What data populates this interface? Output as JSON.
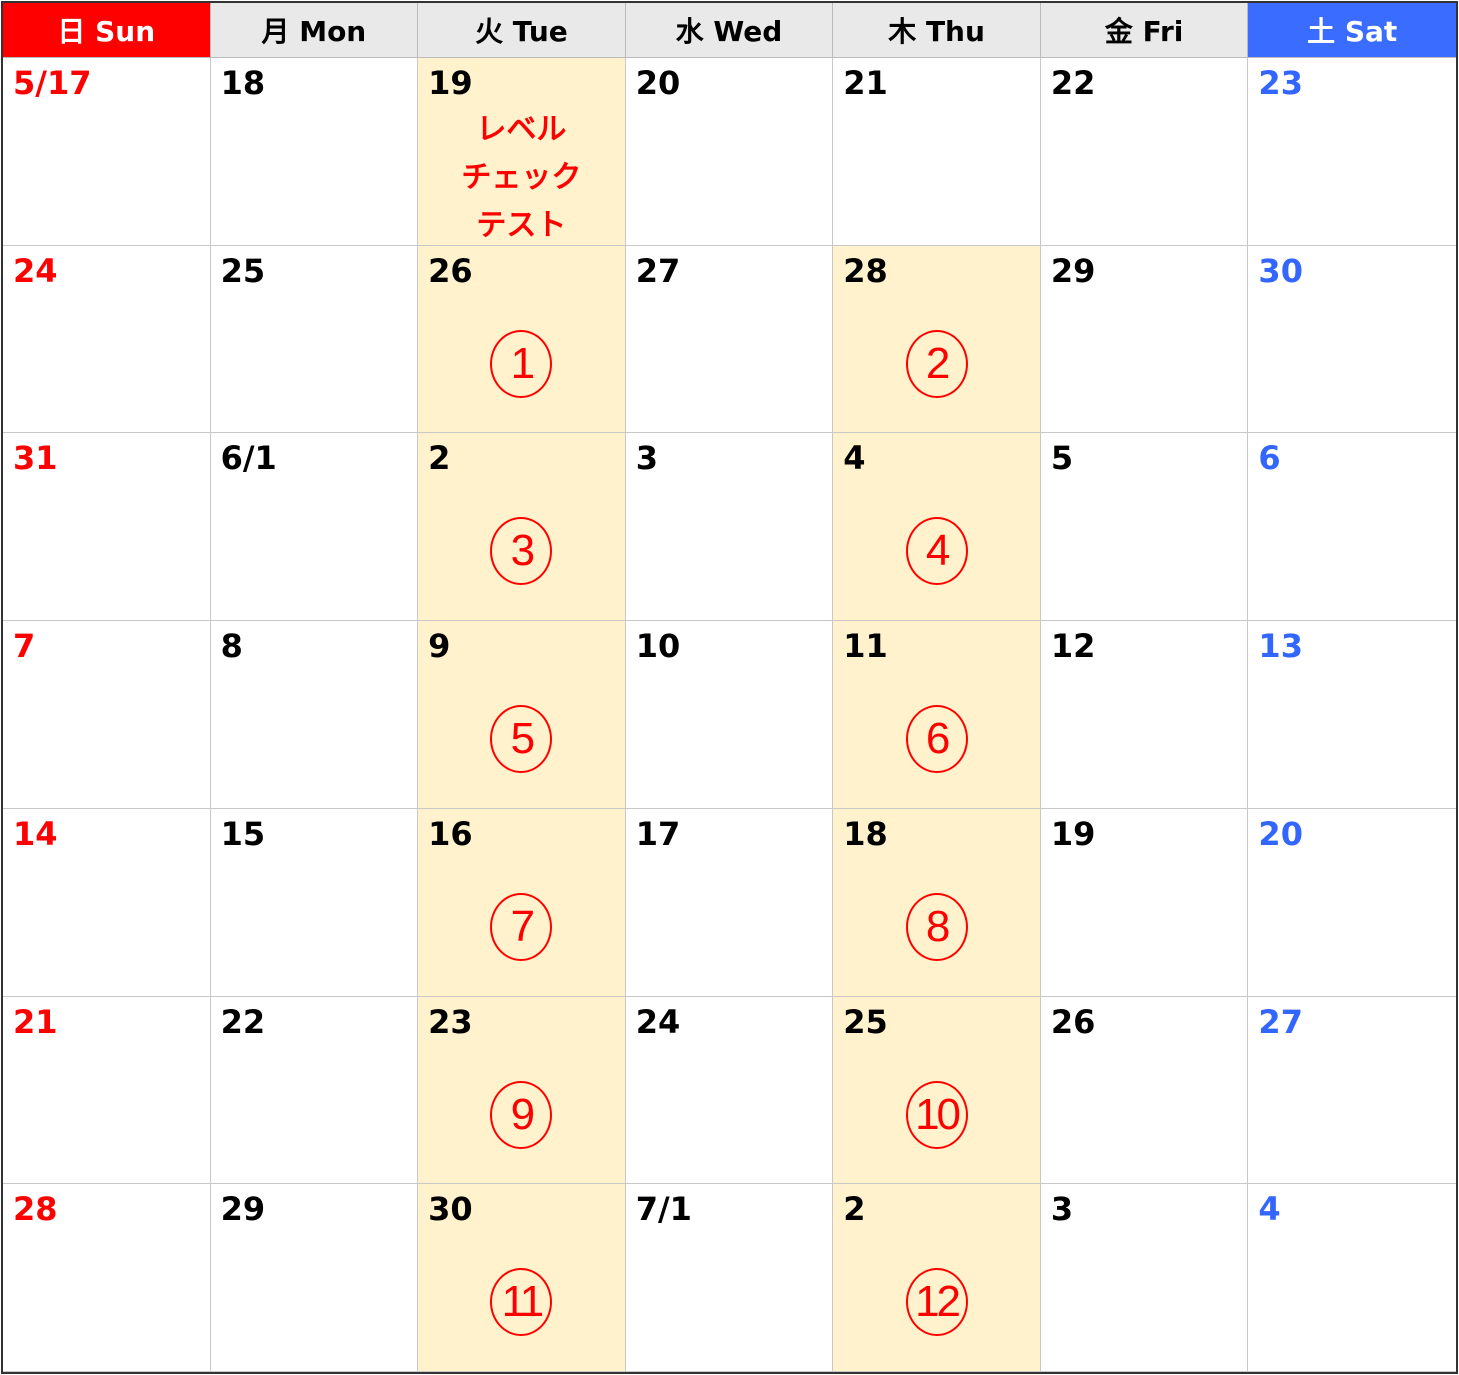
{
  "header": [
    "日 Sun",
    "月 Mon",
    "火 Tue",
    "水 Wed",
    "木 Thu",
    "金 Fri",
    "土 Sat"
  ],
  "colors": {
    "sunday": "#ff0000",
    "saturday": "#3a6cff",
    "highlight": "#fff2cc",
    "mark": "#ff0000"
  },
  "weeks": [
    [
      {
        "d": "5/17"
      },
      {
        "d": "18"
      },
      {
        "d": "19",
        "hl": true,
        "note": [
          "レベル",
          "チェック",
          "テスト"
        ]
      },
      {
        "d": "20"
      },
      {
        "d": "21"
      },
      {
        "d": "22"
      },
      {
        "d": "23"
      }
    ],
    [
      {
        "d": "24"
      },
      {
        "d": "25"
      },
      {
        "d": "26",
        "hl": true,
        "mark": "1"
      },
      {
        "d": "27"
      },
      {
        "d": "28",
        "hl": true,
        "mark": "2"
      },
      {
        "d": "29"
      },
      {
        "d": "30"
      }
    ],
    [
      {
        "d": "31"
      },
      {
        "d": "6/1"
      },
      {
        "d": "2",
        "hl": true,
        "mark": "3"
      },
      {
        "d": "3"
      },
      {
        "d": "4",
        "hl": true,
        "mark": "4"
      },
      {
        "d": "5"
      },
      {
        "d": "6"
      }
    ],
    [
      {
        "d": "7"
      },
      {
        "d": "8"
      },
      {
        "d": "9",
        "hl": true,
        "mark": "5"
      },
      {
        "d": "10"
      },
      {
        "d": "11",
        "hl": true,
        "mark": "6"
      },
      {
        "d": "12"
      },
      {
        "d": "13"
      }
    ],
    [
      {
        "d": "14"
      },
      {
        "d": "15"
      },
      {
        "d": "16",
        "hl": true,
        "mark": "7"
      },
      {
        "d": "17"
      },
      {
        "d": "18",
        "hl": true,
        "mark": "8"
      },
      {
        "d": "19"
      },
      {
        "d": "20"
      }
    ],
    [
      {
        "d": "21"
      },
      {
        "d": "22"
      },
      {
        "d": "23",
        "hl": true,
        "mark": "9"
      },
      {
        "d": "24"
      },
      {
        "d": "25",
        "hl": true,
        "mark": "10"
      },
      {
        "d": "26"
      },
      {
        "d": "27"
      }
    ],
    [
      {
        "d": "28"
      },
      {
        "d": "29"
      },
      {
        "d": "30",
        "hl": true,
        "mark": "11"
      },
      {
        "d": "7/1"
      },
      {
        "d": "2",
        "hl": true,
        "mark": "12"
      },
      {
        "d": "3"
      },
      {
        "d": "4"
      }
    ]
  ]
}
